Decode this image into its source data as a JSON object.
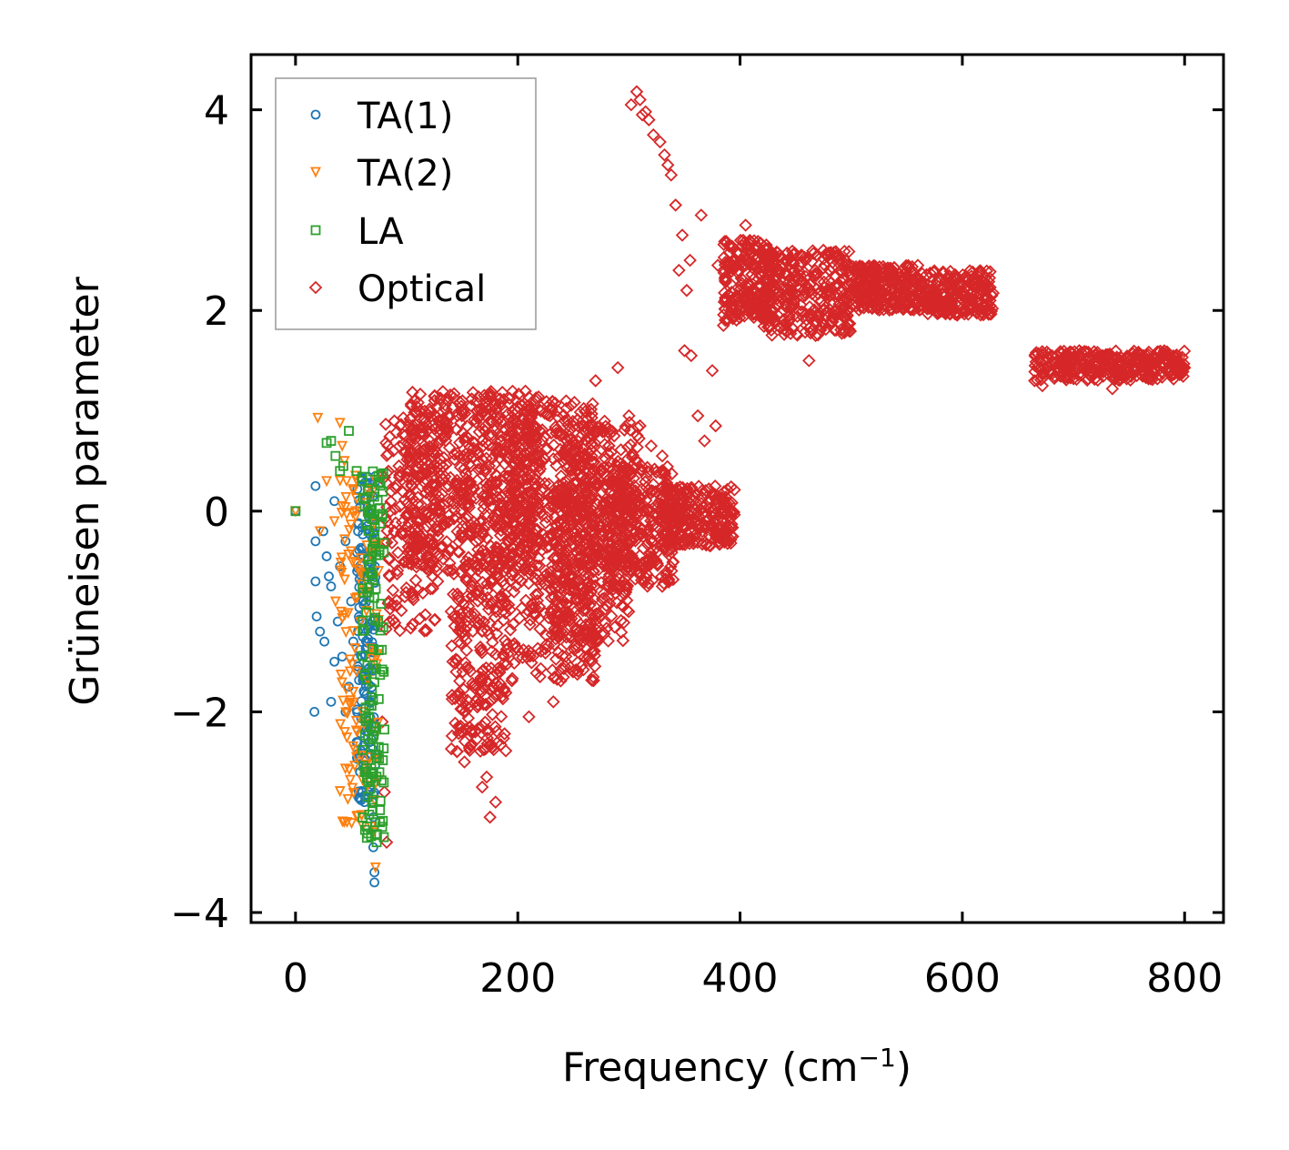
{
  "chart_data": {
    "type": "scatter",
    "xlabel": "Frequency (cm",
    "xlabel_sup": "−1",
    "xlabel_close": ")",
    "ylabel": "Grüneisen parameter",
    "xlim": [
      -40,
      835
    ],
    "ylim": [
      -4.1,
      4.55
    ],
    "xticks": [
      0,
      200,
      400,
      600,
      800
    ],
    "yticks": [
      -4,
      -2,
      0,
      2,
      4
    ],
    "xtick_labels": [
      "0",
      "200",
      "400",
      "600",
      "800"
    ],
    "ytick_labels": [
      "−4",
      "−2",
      "0",
      "2",
      "4"
    ],
    "legend_position": "top-left",
    "series": [
      {
        "name": "TA(1)",
        "color": "#1f77b4",
        "marker": "circle",
        "points": [
          [
            0,
            0
          ],
          [
            18,
            0.25
          ],
          [
            18,
            -0.3
          ],
          [
            18,
            -0.7
          ],
          [
            19,
            -1.05
          ],
          [
            22,
            -1.2
          ],
          [
            25,
            -0.2
          ],
          [
            26,
            -1.3
          ],
          [
            28,
            -0.45
          ],
          [
            30,
            -0.65
          ],
          [
            32,
            -0.75
          ],
          [
            32,
            -1.9
          ],
          [
            35,
            0.1
          ],
          [
            35,
            -1.5
          ],
          [
            38,
            -1.1
          ],
          [
            40,
            -0.55
          ],
          [
            42,
            -1.45
          ],
          [
            45,
            -0.3
          ],
          [
            45,
            -2.0
          ],
          [
            48,
            -1.75
          ],
          [
            50,
            -0.9
          ],
          [
            52,
            -1.3
          ],
          [
            55,
            -2.3
          ],
          [
            58,
            -2.6
          ],
          [
            60,
            -1.6
          ],
          [
            62,
            -2.9
          ],
          [
            65,
            -2.2
          ],
          [
            66,
            -2.8
          ],
          [
            68,
            -1.9
          ],
          [
            70,
            -3.05
          ],
          [
            70,
            -3.35
          ],
          [
            71,
            -3.6
          ],
          [
            71,
            -3.7
          ],
          [
            17,
            -2.0
          ]
        ],
        "bands": [
          [
            55,
            72,
            -2.9,
            0.35,
            160
          ]
        ]
      },
      {
        "name": "TA(2)",
        "color": "#ff7f0e",
        "marker": "triangle-down",
        "points": [
          [
            0,
            0
          ],
          [
            20,
            0.93
          ],
          [
            22,
            -0.2
          ],
          [
            28,
            0.3
          ],
          [
            35,
            -0.1
          ],
          [
            40,
            0.88
          ],
          [
            42,
            0.65
          ],
          [
            44,
            0.5
          ],
          [
            46,
            0.3
          ],
          [
            50,
            -0.4
          ],
          [
            52,
            -1.8
          ],
          [
            55,
            -1.6
          ],
          [
            60,
            -2.0
          ],
          [
            65,
            -2.6
          ],
          [
            70,
            -3.2
          ],
          [
            72,
            -3.55
          ],
          [
            36,
            -0.9
          ]
        ],
        "bands": [
          [
            40,
            75,
            -3.2,
            0.4,
            120
          ]
        ]
      },
      {
        "name": "LA",
        "color": "#2ca02c",
        "marker": "square",
        "points": [
          [
            0,
            0
          ],
          [
            28,
            0.68
          ],
          [
            32,
            0.7
          ],
          [
            36,
            0.55
          ],
          [
            40,
            0.4
          ],
          [
            43,
            0.45
          ],
          [
            48,
            0.8
          ],
          [
            55,
            0.4
          ],
          [
            60,
            0.3
          ],
          [
            65,
            0.2
          ],
          [
            72,
            -3.1
          ],
          [
            73,
            -3.3
          ],
          [
            76,
            -3.1
          ],
          [
            70,
            -2.6
          ]
        ],
        "bands": [
          [
            60,
            80,
            -3.3,
            0.4,
            140
          ]
        ]
      },
      {
        "name": "Optical",
        "color": "#d62728",
        "marker": "diamond",
        "points": [
          [
            302,
            4.05
          ],
          [
            307,
            4.18
          ],
          [
            310,
            4.1
          ],
          [
            312,
            3.95
          ],
          [
            315,
            3.98
          ],
          [
            318,
            3.9
          ],
          [
            322,
            3.75
          ],
          [
            328,
            3.68
          ],
          [
            332,
            3.55
          ],
          [
            335,
            3.45
          ],
          [
            338,
            3.35
          ],
          [
            342,
            3.05
          ],
          [
            348,
            2.75
          ],
          [
            345,
            2.4
          ],
          [
            352,
            2.2
          ],
          [
            365,
            2.95
          ],
          [
            355,
            2.5
          ],
          [
            350,
            1.6
          ],
          [
            356,
            1.55
          ],
          [
            362,
            0.95
          ],
          [
            368,
            0.7
          ],
          [
            375,
            1.4
          ],
          [
            378,
            0.85
          ],
          [
            290,
            1.43
          ],
          [
            300,
            0.95
          ],
          [
            310,
            0.85
          ],
          [
            320,
            0.65
          ],
          [
            330,
            0.55
          ],
          [
            270,
            1.3
          ],
          [
            282,
            0.65
          ],
          [
            180,
            -2.9
          ],
          [
            175,
            -3.05
          ],
          [
            168,
            -2.75
          ],
          [
            172,
            -2.65
          ],
          [
            152,
            -2.5
          ],
          [
            140,
            -1.0
          ],
          [
            128,
            -0.7
          ],
          [
            118,
            -0.35
          ],
          [
            97,
            0.93
          ],
          [
            93,
            0.45
          ],
          [
            88,
            0.6
          ],
          [
            80,
            -2.8
          ],
          [
            82,
            -3.3
          ],
          [
            78,
            -2.1
          ],
          [
            84,
            -0.9
          ],
          [
            210,
            -2.05
          ],
          [
            220,
            -1.65
          ],
          [
            232,
            -1.9
          ],
          [
            250,
            -1.6
          ],
          [
            262,
            -1.2
          ],
          [
            295,
            -0.95
          ],
          [
            330,
            -0.75
          ],
          [
            672,
            1.25
          ],
          [
            735,
            1.22
          ],
          [
            475,
            2.6
          ],
          [
            455,
            2.55
          ],
          [
            445,
            2.2
          ],
          [
            468,
            1.75
          ],
          [
            462,
            1.5
          ],
          [
            405,
            2.85
          ],
          [
            390,
            2.65
          ],
          [
            380,
            2.45
          ],
          [
            385,
            1.85
          ],
          [
            395,
            1.95
          ],
          [
            400,
            2.05
          ],
          [
            570,
            2.2
          ],
          [
            585,
            2.15
          ],
          [
            625,
            2.1
          ],
          [
            495,
            2.4
          ],
          [
            520,
            2.25
          ],
          [
            540,
            2.3
          ],
          [
            560,
            2.45
          ],
          [
            600,
            2.15
          ],
          [
            800,
            1.43
          ],
          [
            790,
            1.45
          ],
          [
            780,
            1.45
          ],
          [
            760,
            1.5
          ],
          [
            720,
            1.55
          ],
          [
            700,
            1.5
          ],
          [
            680,
            1.55
          ],
          [
            665,
            1.3
          ]
        ],
        "bands": [
          [
            100,
            220,
            -0.6,
            1.2,
            700
          ],
          [
            140,
            190,
            -2.4,
            -0.6,
            220
          ],
          [
            190,
            270,
            -1.7,
            1.1,
            500
          ],
          [
            230,
            300,
            -1.3,
            0.3,
            300
          ],
          [
            280,
            340,
            -0.75,
            0.45,
            280
          ],
          [
            330,
            395,
            -0.35,
            0.25,
            260
          ],
          [
            240,
            310,
            -0.6,
            0.9,
            220
          ],
          [
            385,
            430,
            1.9,
            2.7,
            220
          ],
          [
            420,
            500,
            1.75,
            2.6,
            320
          ],
          [
            500,
            560,
            2.0,
            2.45,
            260
          ],
          [
            560,
            628,
            1.95,
            2.4,
            260
          ],
          [
            665,
            800,
            1.3,
            1.6,
            340
          ],
          [
            80,
            130,
            -1.2,
            0.9,
            160
          ]
        ]
      }
    ]
  }
}
